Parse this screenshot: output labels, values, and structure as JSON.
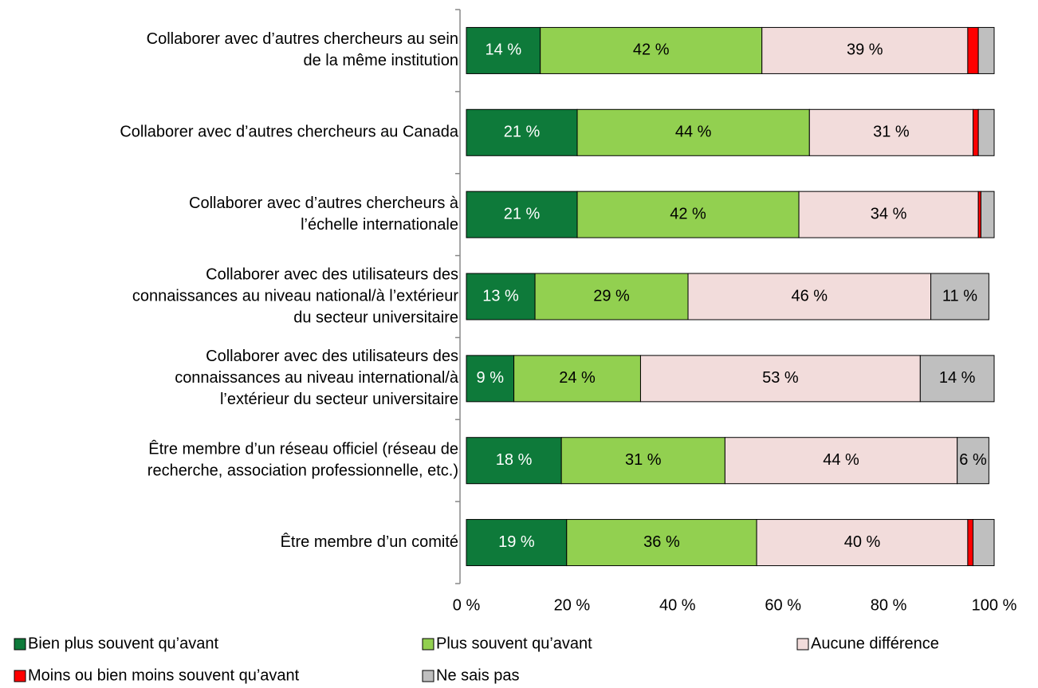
{
  "chart_data": {
    "type": "stacked-barh",
    "categories": [
      [
        "Collaborer avec d’autres chercheurs au sein",
        "de la même institution"
      ],
      [
        "Collaborer avec d’autres chercheurs au Canada"
      ],
      [
        "Collaborer avec d’autres chercheurs à",
        "l’échelle internationale"
      ],
      [
        "Collaborer avec des utilisateurs des",
        "connaissances au niveau national/à l’extérieur",
        "du secteur universitaire"
      ],
      [
        "Collaborer avec des utilisateurs des",
        "connaissances au niveau international/à",
        "l’extérieur du secteur universitaire"
      ],
      [
        "Être membre d’un réseau officiel (réseau de",
        "recherche, association professionnelle, etc.)"
      ],
      [
        "Être membre d’un comité"
      ]
    ],
    "series": [
      {
        "name": "Bien plus souvent qu’avant",
        "color": "#0e7a3a",
        "values": [
          14,
          21,
          21,
          13,
          9,
          18,
          19
        ],
        "value_labels": [
          "14 %",
          "21 %",
          "21 %",
          "13 %",
          "9 %",
          "18 %",
          "19 %"
        ]
      },
      {
        "name": "Plus souvent qu’avant",
        "color": "#92d050",
        "values": [
          42,
          44,
          42,
          29,
          24,
          31,
          36
        ],
        "value_labels": [
          "42 %",
          "44 %",
          "42 %",
          "29 %",
          "24 %",
          "31 %",
          "36 %"
        ]
      },
      {
        "name": "Aucune différence",
        "color": "#f2dcdb",
        "values": [
          39,
          31,
          34,
          46,
          53,
          44,
          40
        ],
        "value_labels": [
          "39 %",
          "31 %",
          "34 %",
          "46 %",
          "53 %",
          "44 %",
          "40 %"
        ]
      },
      {
        "name": "Moins ou bien moins souvent qu’avant",
        "color": "#ff0000",
        "values": [
          2,
          1,
          0.5,
          0,
          0,
          0,
          1
        ]
      },
      {
        "name": "Ne sais pas",
        "color": "#bfbfbf",
        "values": [
          3,
          3,
          2.5,
          11,
          14,
          6,
          4
        ],
        "value_labels": [
          null,
          null,
          null,
          "11 %",
          "14 %",
          "6 %",
          null
        ]
      }
    ],
    "xlim": [
      0,
      100
    ],
    "xticks": [
      {
        "value": 0,
        "label": "0 %"
      },
      {
        "value": 20,
        "label": "20 %"
      },
      {
        "value": 40,
        "label": "40 %"
      },
      {
        "value": 60,
        "label": "60 %"
      },
      {
        "value": 80,
        "label": "80 %"
      },
      {
        "value": 100,
        "label": "100 %"
      }
    ]
  }
}
